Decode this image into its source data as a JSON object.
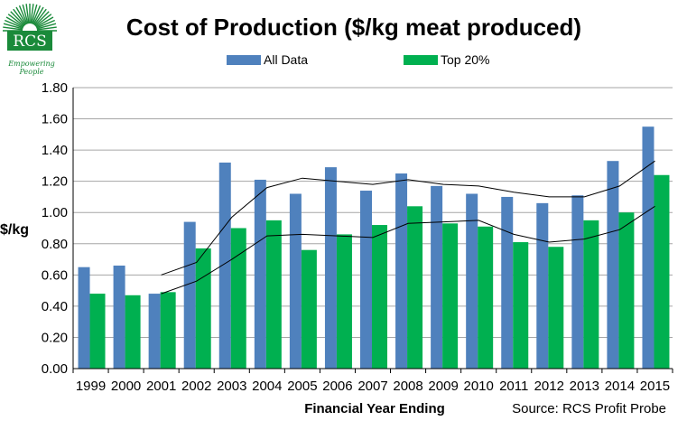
{
  "logo": {
    "text": "RCS",
    "tagline": "Empowering People",
    "color": "#1a8a3a"
  },
  "chart_data": {
    "type": "bar",
    "title": "Cost of Production ($/kg meat produced)",
    "xlabel": "Financial Year Ending",
    "ylabel": "$/kg",
    "source": "Source: RCS Profit Probe",
    "ylim": [
      0,
      1.8
    ],
    "yticks": [
      "0.00",
      "0.20",
      "0.40",
      "0.60",
      "0.80",
      "1.00",
      "1.20",
      "1.40",
      "1.60",
      "1.80"
    ],
    "grid": true,
    "legend_position": "top",
    "categories": [
      "1999",
      "2000",
      "2001",
      "2002",
      "2003",
      "2004",
      "2005",
      "2006",
      "2007",
      "2008",
      "2009",
      "2010",
      "2011",
      "2012",
      "2013",
      "2014",
      "2015"
    ],
    "series": [
      {
        "name": "All Data",
        "color": "#4f81bd",
        "values": [
          0.65,
          0.66,
          0.48,
          0.94,
          1.32,
          1.21,
          1.12,
          1.29,
          1.14,
          1.25,
          1.17,
          1.12,
          1.1,
          1.06,
          1.11,
          1.33,
          1.55
        ]
      },
      {
        "name": "Top 20%",
        "color": "#00b050",
        "values": [
          0.48,
          0.47,
          0.49,
          0.77,
          0.9,
          0.95,
          0.76,
          0.86,
          0.92,
          1.04,
          0.93,
          0.91,
          0.81,
          0.78,
          0.95,
          1.0,
          1.24
        ]
      }
    ],
    "trendlines": [
      {
        "color": "#000000",
        "values": [
          null,
          null,
          0.6,
          0.68,
          0.97,
          1.16,
          1.22,
          1.2,
          1.18,
          1.21,
          1.18,
          1.17,
          1.13,
          1.1,
          1.1,
          1.17,
          1.33
        ]
      },
      {
        "color": "#000000",
        "values": [
          null,
          null,
          0.48,
          0.56,
          0.7,
          0.85,
          0.86,
          0.85,
          0.84,
          0.93,
          0.94,
          0.95,
          0.86,
          0.81,
          0.83,
          0.89,
          1.04
        ]
      }
    ]
  }
}
